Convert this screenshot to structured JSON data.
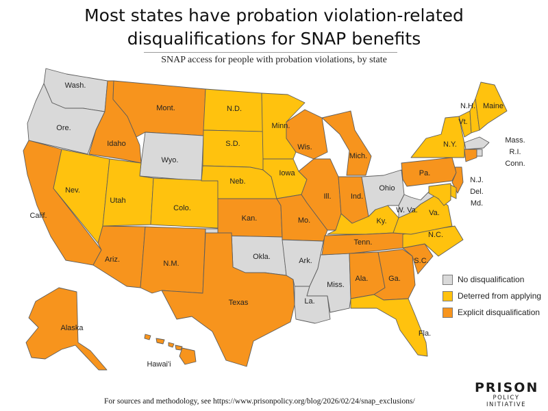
{
  "title_line1": "Most states have probation violation-related",
  "title_line2": "disqualifications for SNAP benefits",
  "subtitle": "SNAP access for people with probation violations, by state",
  "colors": {
    "none": "#d9d9d9",
    "deterred": "#ffc20e",
    "explicit": "#f7941d"
  },
  "legend": [
    {
      "key": "none",
      "label": "No disqualification"
    },
    {
      "key": "deterred",
      "label": "Deterred from applying"
    },
    {
      "key": "explicit",
      "label": "Explicit disqualification"
    }
  ],
  "states": {
    "WA": {
      "label": "Wash.",
      "status": "none"
    },
    "OR": {
      "label": "Ore.",
      "status": "none"
    },
    "CA": {
      "label": "Calif.",
      "status": "explicit"
    },
    "ID": {
      "label": "Idaho",
      "status": "explicit"
    },
    "NV": {
      "label": "Nev.",
      "status": "deterred"
    },
    "MT": {
      "label": "Mont.",
      "status": "explicit"
    },
    "WY": {
      "label": "Wyo.",
      "status": "none"
    },
    "UT": {
      "label": "Utah",
      "status": "deterred"
    },
    "CO": {
      "label": "Colo.",
      "status": "deterred"
    },
    "AZ": {
      "label": "Ariz.",
      "status": "explicit"
    },
    "NM": {
      "label": "N.M.",
      "status": "explicit"
    },
    "ND": {
      "label": "N.D.",
      "status": "deterred"
    },
    "SD": {
      "label": "S.D.",
      "status": "deterred"
    },
    "NE": {
      "label": "Neb.",
      "status": "deterred"
    },
    "KS": {
      "label": "Kan.",
      "status": "explicit"
    },
    "OK": {
      "label": "Okla.",
      "status": "none"
    },
    "TX": {
      "label": "Texas",
      "status": "explicit"
    },
    "MN": {
      "label": "Minn.",
      "status": "deterred"
    },
    "IA": {
      "label": "Iowa",
      "status": "deterred"
    },
    "MO": {
      "label": "Mo.",
      "status": "explicit"
    },
    "AR": {
      "label": "Ark.",
      "status": "none"
    },
    "LA": {
      "label": "La.",
      "status": "none"
    },
    "WI": {
      "label": "Wis.",
      "status": "explicit"
    },
    "IL": {
      "label": "Ill.",
      "status": "explicit"
    },
    "MS": {
      "label": "Miss.",
      "status": "none"
    },
    "MI": {
      "label": "Mich.",
      "status": "explicit"
    },
    "IN": {
      "label": "Ind.",
      "status": "explicit"
    },
    "KY": {
      "label": "Ky.",
      "status": "deterred"
    },
    "TN": {
      "label": "Tenn.",
      "status": "explicit"
    },
    "AL": {
      "label": "Ala.",
      "status": "explicit"
    },
    "OH": {
      "label": "Ohio",
      "status": "none"
    },
    "GA": {
      "label": "Ga.",
      "status": "explicit"
    },
    "FL": {
      "label": "Fla.",
      "status": "deterred"
    },
    "SC": {
      "label": "S.C.",
      "status": "explicit"
    },
    "NC": {
      "label": "N.C.",
      "status": "deterred"
    },
    "VA": {
      "label": "Va.",
      "status": "deterred"
    },
    "WV": {
      "label": "W. Va.",
      "status": "none"
    },
    "PA": {
      "label": "Pa.",
      "status": "explicit"
    },
    "NY": {
      "label": "N.Y.",
      "status": "deterred"
    },
    "VT": {
      "label": "Vt.",
      "status": "deterred"
    },
    "NH": {
      "label": "N.H.",
      "status": "deterred"
    },
    "ME": {
      "label": "Maine",
      "status": "deterred"
    },
    "MA": {
      "label": "Mass.",
      "status": "none"
    },
    "RI": {
      "label": "R.I.",
      "status": "none"
    },
    "CT": {
      "label": "Conn.",
      "status": "explicit"
    },
    "NJ": {
      "label": "N.J.",
      "status": "explicit"
    },
    "DE": {
      "label": "Del.",
      "status": "deterred"
    },
    "MD": {
      "label": "Md.",
      "status": "deterred"
    },
    "AK": {
      "label": "Alaska",
      "status": "explicit"
    },
    "HI": {
      "label": "Hawai'i",
      "status": "explicit"
    }
  },
  "footer": "For sources and methodology, see https://www.prisonpolicy.org/blog/2026/02/24/snap_exclusions/",
  "logo": {
    "main": "PRISON",
    "sub": "POLICY INITIATIVE"
  }
}
